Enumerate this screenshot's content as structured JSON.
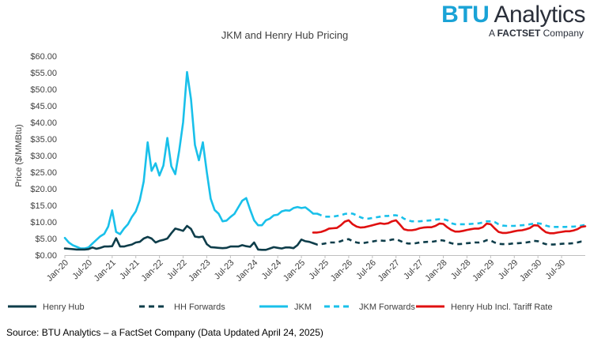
{
  "brand": {
    "name_part1": "BTU",
    "name_part2": "Analytics",
    "tagline_prefix": "A",
    "tagline_brand": "FACTSET",
    "tagline_suffix": "Company"
  },
  "source": "Source: BTU Analytics – a FactSet Company (Data Updated April 24, 2025)",
  "colors": {
    "henry_hub": "#0e3d4a",
    "jkm": "#19c0ea",
    "tariff": "#e01010",
    "axis": "#bfbfbf",
    "text": "#404040"
  },
  "chart_data": {
    "type": "line",
    "title": "JKM and Henry Hub Pricing",
    "xlabel": "",
    "ylabel": "Price ($/MMBtu)",
    "ylim": [
      0,
      60
    ],
    "yticks": [
      0,
      5,
      10,
      15,
      20,
      25,
      30,
      35,
      40,
      45,
      50,
      55,
      60
    ],
    "ytick_labels": [
      "$0.00",
      "$5.00",
      "$10.00",
      "$15.00",
      "$20.00",
      "$25.00",
      "$30.00",
      "$35.00",
      "$40.00",
      "$45.00",
      "$50.00",
      "$55.00",
      "$60.00"
    ],
    "x_range_months": [
      0,
      132
    ],
    "xticks": [
      {
        "m": 0,
        "label": "Jan-20"
      },
      {
        "m": 6,
        "label": "Jul-20"
      },
      {
        "m": 12,
        "label": "Jan-21"
      },
      {
        "m": 18,
        "label": "Jul-21"
      },
      {
        "m": 24,
        "label": "Jan-22"
      },
      {
        "m": 30,
        "label": "Jul-22"
      },
      {
        "m": 36,
        "label": "Jan-23"
      },
      {
        "m": 42,
        "label": "Jul-23"
      },
      {
        "m": 48,
        "label": "Jan-24"
      },
      {
        "m": 54,
        "label": "Jul-24"
      },
      {
        "m": 60,
        "label": "Jan-25"
      },
      {
        "m": 66,
        "label": "Jul-25"
      },
      {
        "m": 72,
        "label": "Jan-26"
      },
      {
        "m": 78,
        "label": "Jul-26"
      },
      {
        "m": 84,
        "label": "Jan-27"
      },
      {
        "m": 90,
        "label": "Jul-27"
      },
      {
        "m": 96,
        "label": "Jan-28"
      },
      {
        "m": 102,
        "label": "Jul-28"
      },
      {
        "m": 108,
        "label": "Jan-29"
      },
      {
        "m": 114,
        "label": "Jul-29"
      },
      {
        "m": 120,
        "label": "Jan-30"
      },
      {
        "m": 126,
        "label": "Jul-30"
      }
    ],
    "legend_position": "bottom",
    "series": [
      {
        "name": "Henry Hub",
        "style": "solid",
        "color": "#0e3d4a",
        "start_month": 0,
        "values": [
          2.0,
          1.9,
          1.8,
          1.7,
          1.7,
          1.7,
          1.8,
          2.3,
          1.9,
          2.2,
          2.6,
          2.6,
          2.7,
          5.1,
          2.6,
          2.6,
          2.9,
          3.2,
          3.8,
          4.0,
          5.0,
          5.5,
          5.0,
          3.8,
          4.3,
          4.6,
          5.0,
          6.6,
          8.0,
          7.7,
          7.3,
          8.8,
          7.9,
          5.6,
          5.4,
          5.6,
          3.3,
          2.4,
          2.3,
          2.2,
          2.1,
          2.2,
          2.6,
          2.6,
          2.6,
          3.0,
          2.7,
          2.5,
          3.8,
          1.7,
          1.6,
          1.6,
          2.0,
          2.4,
          2.2,
          2.0,
          2.3,
          2.3,
          2.1,
          3.0,
          4.7,
          4.2,
          4.0,
          3.6
        ]
      },
      {
        "name": "HH Forwards",
        "style": "dashed",
        "color": "#0e3d4a",
        "start_month": 63,
        "values": [
          3.6,
          3.2,
          3.3,
          3.5,
          3.8,
          3.8,
          3.8,
          4.2,
          4.7,
          4.8,
          4.2,
          3.8,
          3.6,
          3.7,
          3.9,
          4.1,
          4.3,
          4.4,
          4.3,
          4.4,
          4.7,
          4.8,
          4.3,
          3.8,
          3.5,
          3.5,
          3.6,
          3.8,
          3.9,
          4.0,
          4.0,
          4.2,
          4.5,
          4.4,
          4.0,
          3.6,
          3.3,
          3.3,
          3.4,
          3.6,
          3.7,
          3.8,
          3.8,
          4.0,
          4.5,
          4.4,
          3.8,
          3.4,
          3.3,
          3.3,
          3.4,
          3.6,
          3.6,
          3.7,
          3.8,
          4.0,
          4.3,
          4.2,
          3.7,
          3.3,
          3.2,
          3.2,
          3.3,
          3.4,
          3.5,
          3.5,
          3.6,
          3.8,
          4.1,
          4.1
        ]
      },
      {
        "name": "JKM",
        "style": "solid",
        "color": "#19c0ea",
        "start_month": 0,
        "values": [
          5.2,
          3.8,
          3.0,
          2.5,
          2.0,
          2.0,
          2.3,
          3.5,
          4.6,
          5.7,
          6.4,
          8.6,
          13.5,
          7.0,
          6.3,
          8.0,
          9.3,
          11.5,
          13.2,
          16.5,
          22.2,
          34.0,
          25.4,
          27.7,
          24.0,
          27.0,
          35.3,
          26.8,
          24.4,
          31.5,
          40.0,
          55.2,
          47.0,
          33.2,
          28.6,
          34.0,
          25.0,
          17.0,
          13.6,
          12.5,
          10.2,
          10.4,
          11.5,
          12.4,
          14.4,
          16.4,
          17.2,
          13.7,
          10.5,
          9.0,
          9.0,
          10.5,
          11.0,
          12.0,
          12.2,
          13.2,
          13.5,
          13.4,
          14.2,
          14.5,
          14.2,
          14.4,
          13.5,
          12.5,
          12.5
        ]
      },
      {
        "name": "JKM Forwards",
        "style": "dashed",
        "color": "#19c0ea",
        "start_month": 64,
        "values": [
          12.5,
          12.0,
          11.6,
          11.6,
          11.6,
          11.8,
          12.0,
          12.4,
          12.6,
          12.5,
          12.0,
          11.4,
          11.0,
          11.0,
          11.2,
          11.4,
          11.6,
          11.8,
          11.8,
          12.0,
          12.0,
          11.8,
          11.0,
          10.5,
          10.2,
          10.2,
          10.2,
          10.3,
          10.4,
          10.5,
          10.7,
          10.8,
          10.8,
          10.5,
          9.6,
          9.3,
          9.3,
          9.3,
          9.3,
          9.4,
          9.5,
          9.6,
          9.8,
          10.2,
          10.2,
          10.0,
          9.3,
          8.9,
          8.8,
          8.8,
          8.8,
          8.9,
          9.0,
          9.1,
          9.3,
          9.5,
          9.6,
          9.4,
          8.9,
          8.6,
          8.5,
          8.5,
          8.5,
          8.5,
          8.6,
          8.6,
          8.7,
          8.9,
          9.1
        ]
      },
      {
        "name": "Henry Hub Incl. Tariff Rate",
        "style": "solid",
        "color": "#e01010",
        "start_month": 63,
        "values": [
          6.8,
          6.8,
          7.0,
          7.4,
          8.0,
          8.1,
          8.2,
          9.0,
          10.1,
          10.5,
          9.3,
          8.6,
          8.3,
          8.4,
          8.7,
          9.0,
          9.3,
          9.6,
          9.4,
          9.6,
          10.2,
          10.5,
          9.2,
          7.8,
          7.5,
          7.5,
          7.7,
          8.1,
          8.3,
          8.4,
          8.4,
          8.8,
          9.5,
          9.4,
          8.4,
          7.6,
          7.1,
          7.1,
          7.3,
          7.6,
          7.8,
          8.0,
          8.0,
          8.4,
          9.5,
          9.3,
          8.1,
          7.0,
          6.7,
          6.7,
          6.9,
          7.2,
          7.4,
          7.5,
          7.8,
          8.2,
          9.0,
          8.9,
          7.8,
          6.9,
          6.6,
          6.6,
          6.8,
          7.0,
          7.2,
          7.2,
          7.4,
          7.8,
          8.5,
          8.7
        ]
      }
    ]
  }
}
